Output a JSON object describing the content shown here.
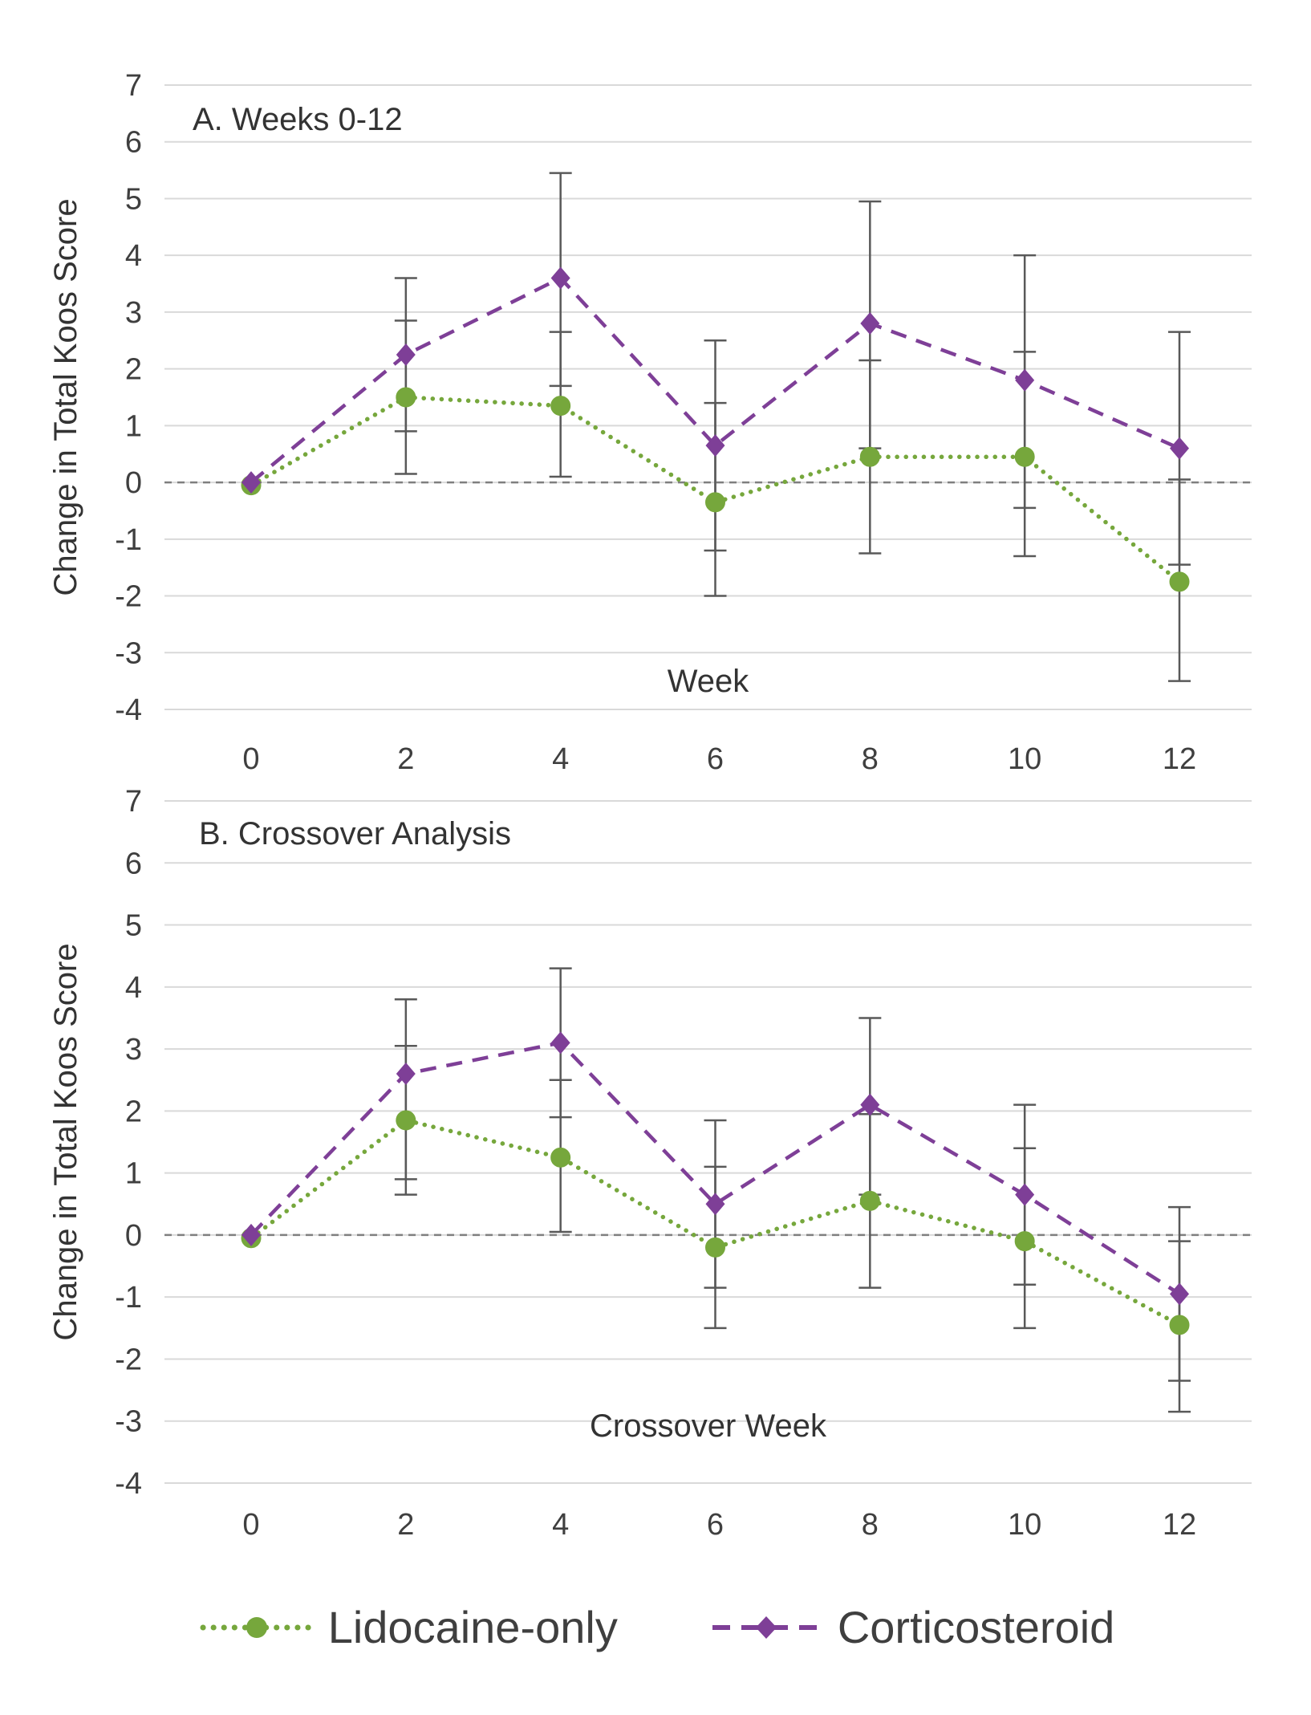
{
  "figure": {
    "background": "#FFFFFF",
    "text_color": "#3F3F3F",
    "grid_color": "#D9D9D9",
    "zero_line_color": "#7F7F7F",
    "error_bar_color": "#595959"
  },
  "legend": {
    "position": "bottom",
    "items": [
      "Lidocaine-only",
      "Corticosteroid"
    ]
  },
  "chart_data": [
    {
      "type": "line",
      "title": "A. Weeks 0-12",
      "xlabel": "Week",
      "ylabel": "Change in Total Koos Score",
      "x": [
        0,
        2,
        4,
        6,
        8,
        10,
        12
      ],
      "ylim": [
        -4,
        7
      ],
      "yticks": [
        7,
        6,
        5,
        4,
        3,
        2,
        1,
        0,
        -1,
        -2,
        -3,
        -4
      ],
      "grid": true,
      "zero_line": true,
      "series": [
        {
          "name": "Lidocaine-only",
          "color": "#76A73C",
          "marker": "circle",
          "line": "dotted",
          "values": [
            -0.05,
            1.5,
            1.35,
            -0.35,
            0.45,
            0.45,
            -1.75
          ],
          "err_low": [
            null,
            0.15,
            0.1,
            -2.0,
            -1.25,
            -1.3,
            -3.5
          ],
          "err_high": [
            null,
            2.85,
            2.65,
            1.4,
            2.15,
            2.3,
            0.05
          ]
        },
        {
          "name": "Corticosteroid",
          "color": "#7E3F97",
          "marker": "diamond",
          "line": "dashed",
          "values": [
            0,
            2.25,
            3.6,
            0.65,
            2.8,
            1.8,
            0.6
          ],
          "err_low": [
            null,
            0.9,
            1.7,
            -1.2,
            0.6,
            -0.45,
            -1.45
          ],
          "err_high": [
            null,
            3.6,
            5.45,
            2.5,
            4.95,
            4.0,
            2.65
          ]
        }
      ]
    },
    {
      "type": "line",
      "title": "B. Crossover Analysis",
      "xlabel": "Crossover Week",
      "ylabel": "Change in Total Koos Score",
      "x": [
        0,
        2,
        4,
        6,
        8,
        10,
        12
      ],
      "ylim": [
        -4,
        7
      ],
      "yticks": [
        7,
        6,
        5,
        4,
        3,
        2,
        1,
        0,
        -1,
        -2,
        -3,
        -4
      ],
      "grid": true,
      "zero_line": true,
      "series": [
        {
          "name": "Lidocaine-only",
          "color": "#76A73C",
          "marker": "circle",
          "line": "dotted",
          "values": [
            -0.05,
            1.85,
            1.25,
            -0.2,
            0.55,
            -0.1,
            -1.45
          ],
          "err_low": [
            null,
            0.65,
            0.05,
            -1.5,
            -0.85,
            -1.5,
            -2.85
          ],
          "err_high": [
            null,
            3.05,
            2.5,
            1.1,
            1.95,
            1.4,
            -0.1
          ]
        },
        {
          "name": "Corticosteroid",
          "color": "#7E3F97",
          "marker": "diamond",
          "line": "dashed",
          "values": [
            0,
            2.6,
            3.1,
            0.5,
            2.1,
            0.65,
            -0.95
          ],
          "err_low": [
            null,
            0.9,
            1.9,
            -0.85,
            0.65,
            -0.8,
            -2.35
          ],
          "err_high": [
            null,
            3.8,
            4.3,
            1.85,
            3.5,
            2.1,
            0.45
          ]
        }
      ]
    }
  ]
}
